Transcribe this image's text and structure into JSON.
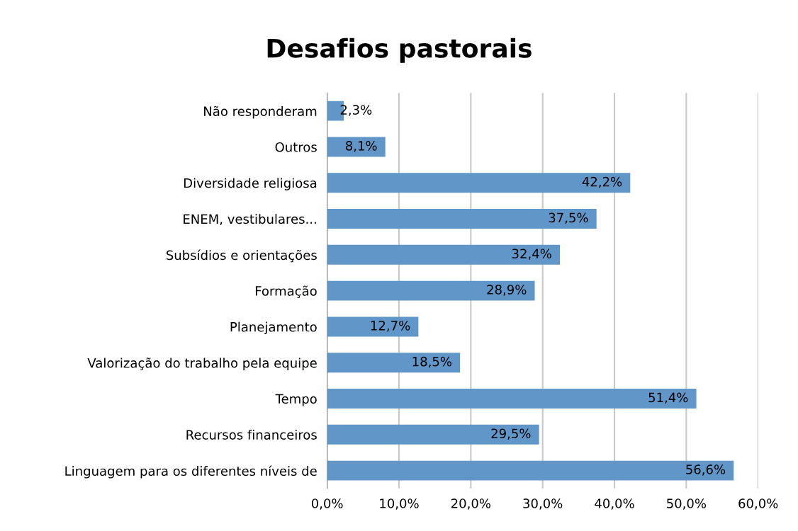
{
  "chart_data": {
    "type": "bar",
    "orientation": "horizontal",
    "title": "Desafios pastorais",
    "categories": [
      "Não responderam",
      "Outros",
      "Diversidade religiosa",
      "ENEM, vestibulares...",
      "Subsídios e orientações",
      "Formação",
      "Planejamento",
      "Valorização do trabalho pela equipe",
      "Tempo",
      "Recursos financeiros",
      "Linguagem para os diferentes níveis de"
    ],
    "values": [
      2.3,
      8.1,
      42.2,
      37.5,
      32.4,
      28.9,
      12.7,
      18.5,
      51.4,
      29.5,
      56.6
    ],
    "value_labels": [
      "2,3%",
      "8,1%",
      "42,2%",
      "37,5%",
      "32,4%",
      "28,9%",
      "12,7%",
      "18,5%",
      "51,4%",
      "29,5%",
      "56,6%"
    ],
    "color": "#6096c8",
    "xlim": [
      0,
      60
    ],
    "xticks": [
      {
        "value": 0,
        "label": "0,0%"
      },
      {
        "value": 10,
        "label": "10,0%"
      },
      {
        "value": 20,
        "label": "20,0%"
      },
      {
        "value": 30,
        "label": "30,0%"
      },
      {
        "value": 40,
        "label": "40,0%"
      },
      {
        "value": 50,
        "label": "50,0%"
      },
      {
        "value": 60,
        "label": "60,0%"
      }
    ],
    "grid": "x",
    "legend": false
  }
}
